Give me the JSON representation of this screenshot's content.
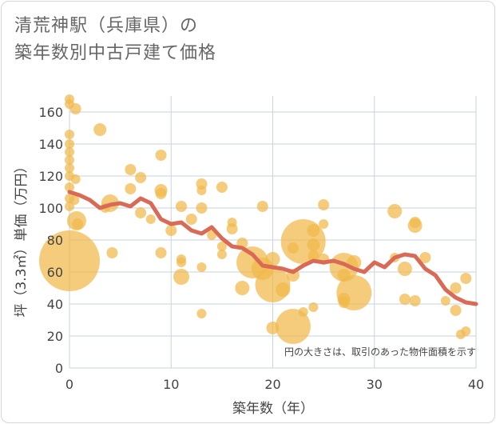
{
  "title": {
    "line1": "清荒神駅（兵庫県）の",
    "line2": "築年数別中古戸建て価格"
  },
  "chart_data": {
    "type": "scatter",
    "title": "清荒神駅（兵庫県）の築年数別中古戸建て価格",
    "xlabel": "築年数（年）",
    "ylabel": "坪（3.3㎡）単価（万円）",
    "xlim": [
      0,
      40
    ],
    "ylim": [
      0,
      170
    ],
    "x_ticks": [
      0,
      10,
      20,
      30,
      40
    ],
    "y_ticks": [
      0,
      20,
      40,
      60,
      80,
      100,
      120,
      140,
      160
    ],
    "grid": true,
    "note": "円の大きさは、取引のあった物件面積を示す",
    "colors": {
      "bubble": "#f0b94a",
      "line": "#d96a55",
      "grid": "#c9d3df"
    },
    "bubbles": [
      {
        "x": 0,
        "y": 67,
        "r": 38
      },
      {
        "x": 0,
        "y": 168,
        "r": 6
      },
      {
        "x": 0,
        "y": 165,
        "r": 6
      },
      {
        "x": 0,
        "y": 146,
        "r": 6
      },
      {
        "x": 0,
        "y": 140,
        "r": 6
      },
      {
        "x": 0,
        "y": 135,
        "r": 6
      },
      {
        "x": 0,
        "y": 130,
        "r": 6
      },
      {
        "x": 0,
        "y": 125,
        "r": 6
      },
      {
        "x": 0,
        "y": 120,
        "r": 6
      },
      {
        "x": 0,
        "y": 113,
        "r": 6
      },
      {
        "x": 0,
        "y": 106,
        "r": 6
      },
      {
        "x": 0,
        "y": 101,
        "r": 6
      },
      {
        "x": 0.5,
        "y": 105,
        "r": 6
      },
      {
        "x": 0.6,
        "y": 118,
        "r": 6
      },
      {
        "x": 0.6,
        "y": 162,
        "r": 7
      },
      {
        "x": 0.7,
        "y": 92,
        "r": 12
      },
      {
        "x": 0.8,
        "y": 90,
        "r": 7
      },
      {
        "x": 3,
        "y": 149,
        "r": 8
      },
      {
        "x": 3.5,
        "y": 100,
        "r": 6
      },
      {
        "x": 4,
        "y": 103,
        "r": 11
      },
      {
        "x": 4.2,
        "y": 72,
        "r": 7
      },
      {
        "x": 6,
        "y": 112,
        "r": 7
      },
      {
        "x": 6,
        "y": 124,
        "r": 7
      },
      {
        "x": 7,
        "y": 119,
        "r": 7
      },
      {
        "x": 7,
        "y": 97,
        "r": 7
      },
      {
        "x": 8,
        "y": 93,
        "r": 6
      },
      {
        "x": 9,
        "y": 133,
        "r": 7
      },
      {
        "x": 9,
        "y": 111,
        "r": 8
      },
      {
        "x": 9,
        "y": 109,
        "r": 7
      },
      {
        "x": 9,
        "y": 72,
        "r": 7
      },
      {
        "x": 10,
        "y": 86,
        "r": 7
      },
      {
        "x": 11,
        "y": 101,
        "r": 7
      },
      {
        "x": 11,
        "y": 68,
        "r": 6
      },
      {
        "x": 11,
        "y": 66,
        "r": 6
      },
      {
        "x": 11,
        "y": 57,
        "r": 10
      },
      {
        "x": 12,
        "y": 93,
        "r": 7
      },
      {
        "x": 13,
        "y": 115,
        "r": 7
      },
      {
        "x": 13,
        "y": 111,
        "r": 6
      },
      {
        "x": 13,
        "y": 100,
        "r": 7
      },
      {
        "x": 13,
        "y": 63,
        "r": 6
      },
      {
        "x": 13,
        "y": 34,
        "r": 6
      },
      {
        "x": 14,
        "y": 83,
        "r": 6
      },
      {
        "x": 15,
        "y": 113,
        "r": 7
      },
      {
        "x": 15,
        "y": 76,
        "r": 6
      },
      {
        "x": 15,
        "y": 71,
        "r": 6
      },
      {
        "x": 16,
        "y": 91,
        "r": 6
      },
      {
        "x": 16,
        "y": 87,
        "r": 7
      },
      {
        "x": 17,
        "y": 78,
        "r": 7
      },
      {
        "x": 17,
        "y": 50,
        "r": 9
      },
      {
        "x": 18,
        "y": 66,
        "r": 20
      },
      {
        "x": 19,
        "y": 101,
        "r": 7
      },
      {
        "x": 19,
        "y": 62,
        "r": 14
      },
      {
        "x": 20,
        "y": 68,
        "r": 9
      },
      {
        "x": 20,
        "y": 52,
        "r": 22
      },
      {
        "x": 20,
        "y": 25,
        "r": 8
      },
      {
        "x": 21,
        "y": 49,
        "r": 9
      },
      {
        "x": 22,
        "y": 26,
        "r": 22
      },
      {
        "x": 22,
        "y": 58,
        "r": 8
      },
      {
        "x": 22,
        "y": 75,
        "r": 7
      },
      {
        "x": 23,
        "y": 79,
        "r": 28
      },
      {
        "x": 23,
        "y": 35,
        "r": 6
      },
      {
        "x": 24,
        "y": 86,
        "r": 8
      },
      {
        "x": 24,
        "y": 77,
        "r": 8
      },
      {
        "x": 24,
        "y": 70,
        "r": 7
      },
      {
        "x": 24,
        "y": 38,
        "r": 6
      },
      {
        "x": 25,
        "y": 102,
        "r": 7
      },
      {
        "x": 25,
        "y": 90,
        "r": 6
      },
      {
        "x": 25,
        "y": 68,
        "r": 7
      },
      {
        "x": 27,
        "y": 63,
        "r": 18
      },
      {
        "x": 27,
        "y": 58,
        "r": 8
      },
      {
        "x": 27,
        "y": 43,
        "r": 8
      },
      {
        "x": 27,
        "y": 41,
        "r": 7
      },
      {
        "x": 28,
        "y": 66,
        "r": 9
      },
      {
        "x": 28,
        "y": 47,
        "r": 22
      },
      {
        "x": 32,
        "y": 98,
        "r": 9
      },
      {
        "x": 32,
        "y": 69,
        "r": 6
      },
      {
        "x": 33,
        "y": 62,
        "r": 9
      },
      {
        "x": 33,
        "y": 43,
        "r": 7
      },
      {
        "x": 34,
        "y": 91,
        "r": 7
      },
      {
        "x": 34,
        "y": 89,
        "r": 9
      },
      {
        "x": 34,
        "y": 42,
        "r": 7
      },
      {
        "x": 35,
        "y": 69,
        "r": 7
      },
      {
        "x": 37,
        "y": 42,
        "r": 6
      },
      {
        "x": 38,
        "y": 50,
        "r": 7
      },
      {
        "x": 38,
        "y": 36,
        "r": 7
      },
      {
        "x": 38.5,
        "y": 21,
        "r": 6
      },
      {
        "x": 39,
        "y": 56,
        "r": 7
      },
      {
        "x": 39,
        "y": 23,
        "r": 6
      }
    ],
    "trend_line": {
      "x": [
        0,
        1,
        2,
        3,
        4,
        5,
        6,
        7,
        8,
        9,
        10,
        11,
        12,
        13,
        14,
        15,
        16,
        17,
        18,
        19,
        20,
        21,
        22,
        23,
        24,
        25,
        26,
        27,
        28,
        29,
        30,
        31,
        32,
        33,
        34,
        35,
        36,
        37,
        38,
        39,
        40
      ],
      "y": [
        110,
        108,
        105,
        100,
        102,
        103,
        101,
        106,
        103,
        93,
        90,
        91,
        86,
        84,
        88,
        81,
        76,
        75,
        71,
        64,
        63,
        62,
        60,
        64,
        67,
        66,
        67,
        65,
        62,
        60,
        66,
        63,
        69,
        71,
        70,
        62,
        58,
        49,
        44,
        41,
        40
      ]
    }
  }
}
